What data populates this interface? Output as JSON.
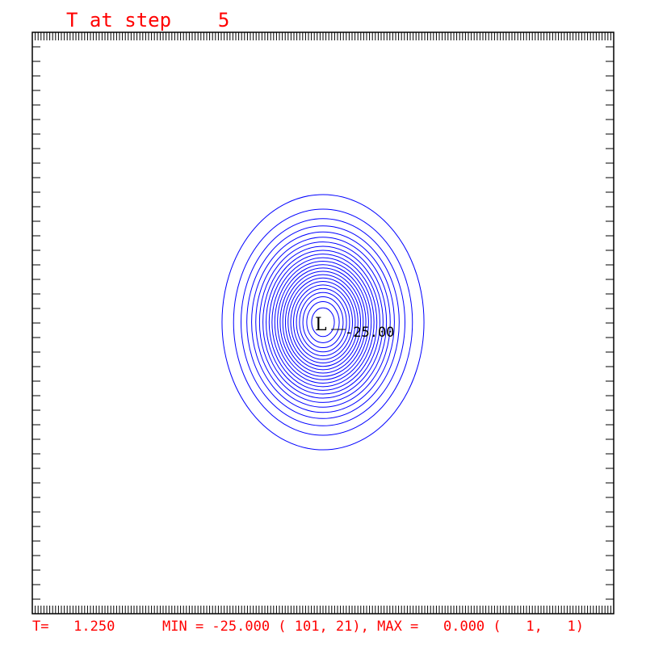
{
  "title": "T at step    5",
  "footer": {
    "time": "T=   1.250",
    "minmax": "MIN = -25.000 ( 101, 21), MAX =   0.000 (   1,   1)"
  },
  "colors": {
    "contour": "#0000ff",
    "text": "#ff0000",
    "frame": "#000000"
  },
  "chart_data": {
    "type": "contour",
    "title": "T at step    5",
    "field_min": -25.0,
    "field_min_location": [
      101,
      21
    ],
    "field_max": 0.0,
    "field_max_location": [
      1,
      1
    ],
    "levels": [
      -1,
      -2,
      -3,
      -4,
      -5,
      -6,
      -7,
      -8,
      -9,
      -10,
      -11,
      -12,
      -13,
      -14,
      -15,
      -16,
      -17,
      -18,
      -19,
      -20,
      -21,
      -22,
      -23,
      -24
    ],
    "low_marker": {
      "symbol": "L",
      "value_label": "-25.00"
    },
    "x_ticks_major_count": 200,
    "y_ticks_count": 40
  }
}
